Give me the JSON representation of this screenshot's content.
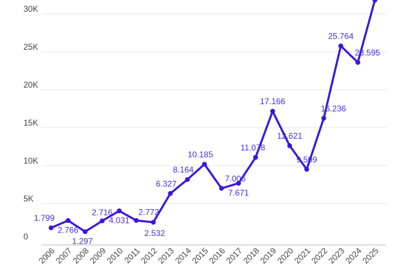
{
  "chart_data": {
    "type": "line",
    "title": "",
    "xlabel": "",
    "ylabel": "",
    "x": [
      "2006",
      "2007",
      "2008",
      "2009",
      "2010",
      "2011",
      "2012",
      "2013",
      "2014",
      "2015",
      "2016",
      "2017",
      "2018",
      "2019",
      "2020",
      "2021",
      "2022",
      "2023",
      "2024",
      "2025"
    ],
    "series": [
      {
        "values": [
          1799,
          2766,
          1297,
          2716,
          4031,
          2772,
          2532,
          6327,
          8164,
          10185,
          7006,
          7671,
          11078,
          17166,
          12621,
          9509,
          16236,
          25764,
          23595,
          31800
        ],
        "labels": [
          "1.799",
          "2.766",
          "1.297",
          "2.716",
          "4.031",
          "2.772",
          "2.532",
          "6.327",
          "8.164",
          "10.185",
          "7.006",
          "7.671",
          "11.078",
          "17.166",
          "12.621",
          "9.509",
          "16.236",
          "25.764",
          "23.595",
          ""
        ]
      }
    ],
    "ylim": [
      0,
      30000
    ],
    "yticks": [
      0,
      5000,
      10000,
      15000,
      20000,
      25000,
      30000
    ],
    "ytick_labels": [
      "0",
      "5K",
      "10K",
      "15K",
      "20K",
      "25K",
      "30K"
    ],
    "grid": true,
    "legend": "none",
    "colors": {
      "line": "#3a16e0",
      "label": "#4a2ce0",
      "grid": "#e6e6e6",
      "axis": "#bbbbbb"
    }
  }
}
